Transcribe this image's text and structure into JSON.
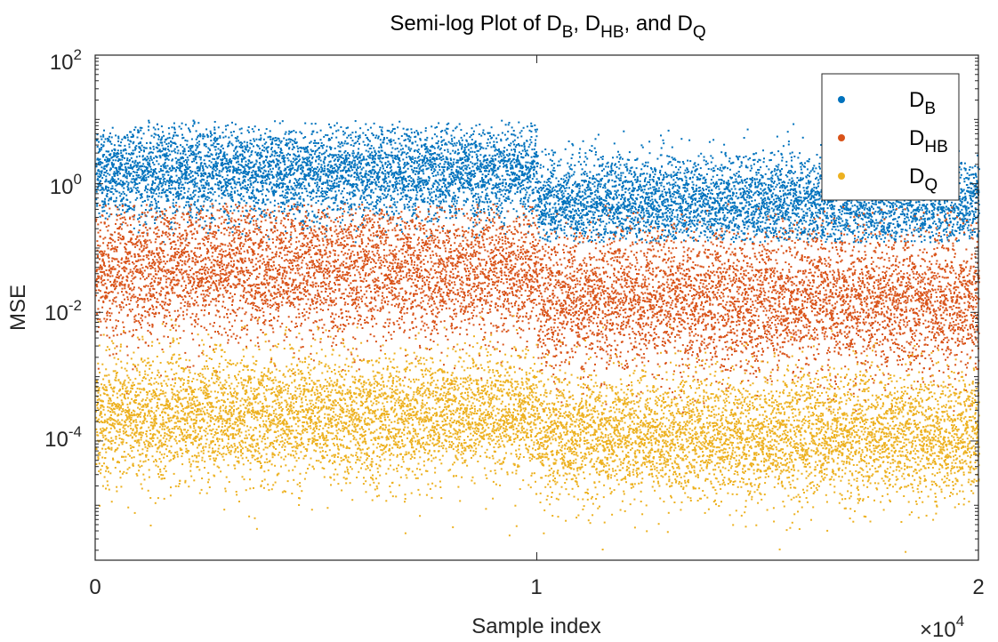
{
  "chart_data": {
    "type": "scatter",
    "title": {
      "prefix": "Semi-log Plot of D",
      "sub1": "B",
      "sep1": ", D",
      "sub2": "HB",
      "sep2": ", and D",
      "sub3": "Q"
    },
    "xlabel": "Sample index",
    "ylabel": "MSE",
    "x_exponent": {
      "base": "×10",
      "power": "4"
    },
    "xlim": [
      0,
      20000
    ],
    "ylim": [
      1.4e-06,
      100
    ],
    "y_scale": "log",
    "x_ticks": [
      {
        "value": 0,
        "label": "0"
      },
      {
        "value": 10000,
        "label": "1"
      },
      {
        "value": 20000,
        "label": "2"
      }
    ],
    "y_ticks": [
      {
        "value": 0.0001,
        "base": "10",
        "exp": "-4"
      },
      {
        "value": 0.01,
        "base": "10",
        "exp": "-2"
      },
      {
        "value": 1,
        "base": "10",
        "exp": "0"
      },
      {
        "value": 100,
        "base": "10",
        "exp": "2"
      }
    ],
    "legend_position": "top-right",
    "n_samples": 20000,
    "series": [
      {
        "name": "D",
        "sub": "B",
        "color": "#0072BD",
        "center_log10_first_half": 0.2,
        "center_log10_second_half": -0.3,
        "spread_log10": 0.38,
        "min_log10": -0.9,
        "max_log10": 1.0
      },
      {
        "name": "D",
        "sub": "HB",
        "color": "#D95319",
        "center_log10_first_half": -1.3,
        "center_log10_second_half": -1.8,
        "spread_log10": 0.55,
        "min_log10": -3.6,
        "max_log10": -0.3
      },
      {
        "name": "D",
        "sub": "Q",
        "color": "#EDB120",
        "center_log10_first_half": -3.6,
        "center_log10_second_half": -3.9,
        "spread_log10": 0.5,
        "min_log10": -5.85,
        "max_log10": -2.0
      }
    ]
  }
}
